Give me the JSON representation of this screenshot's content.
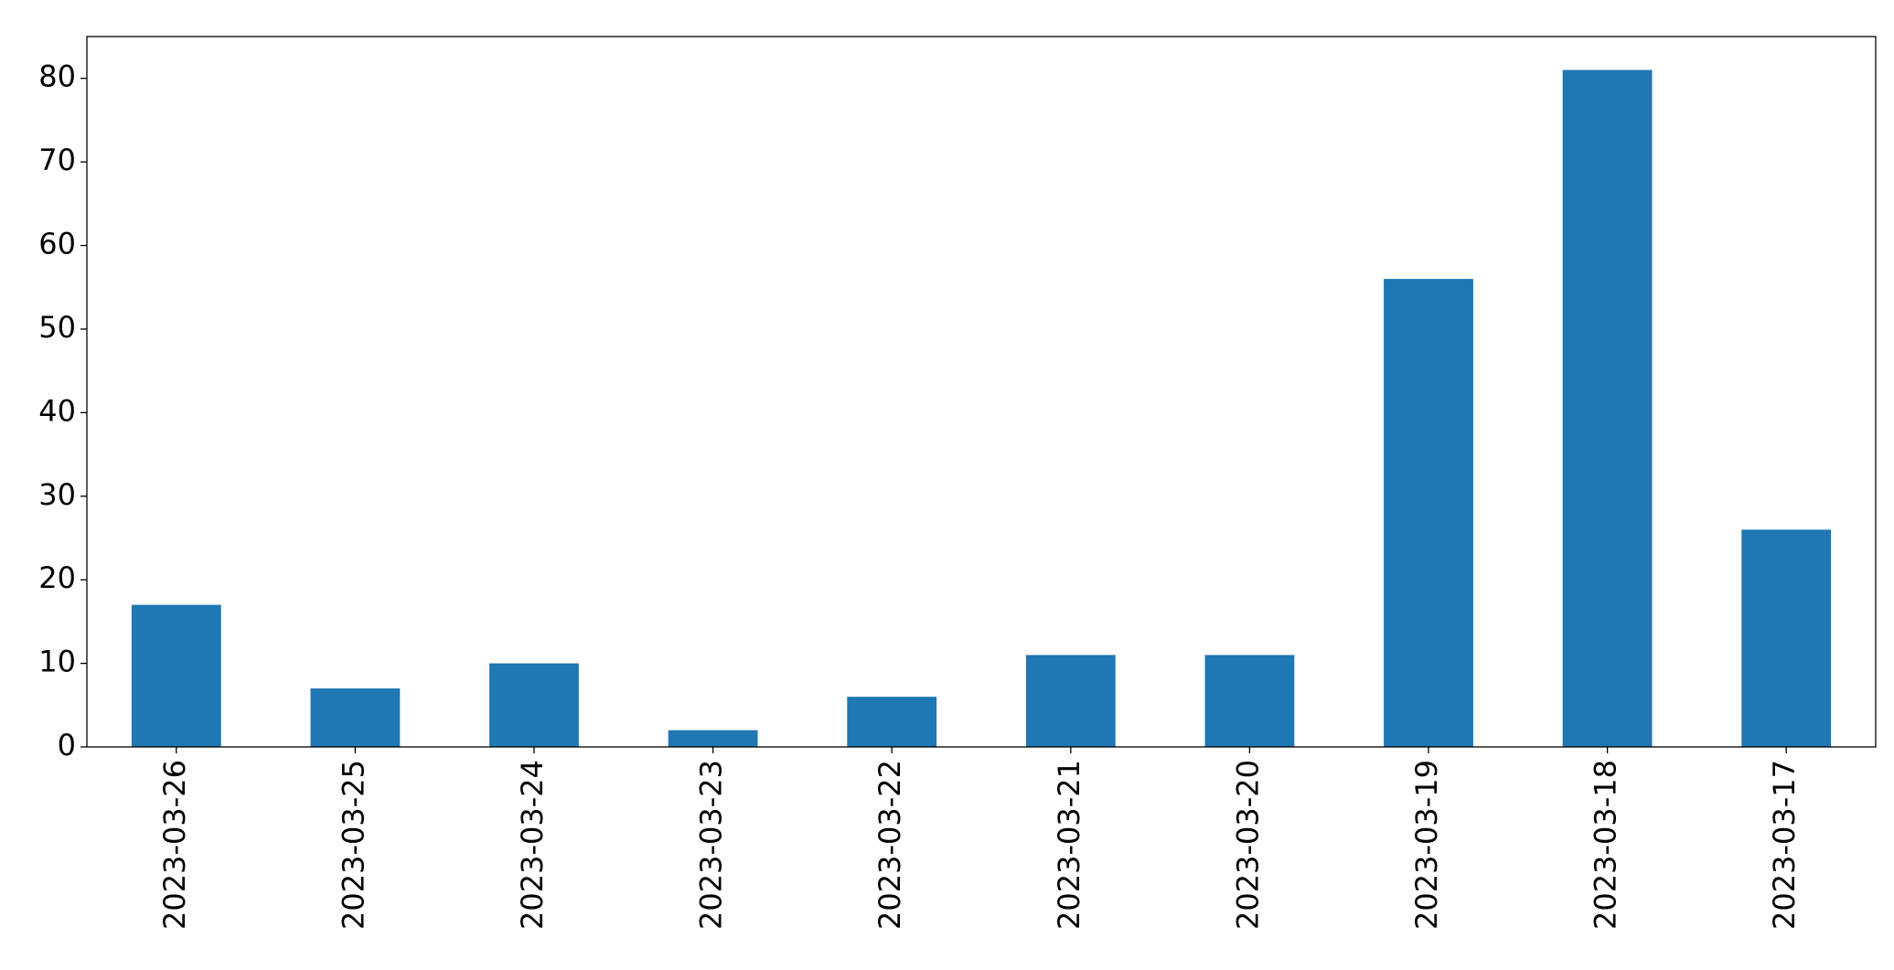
{
  "chart_data": {
    "type": "bar",
    "categories": [
      "2023-03-26",
      "2023-03-25",
      "2023-03-24",
      "2023-03-23",
      "2023-03-22",
      "2023-03-21",
      "2023-03-20",
      "2023-03-19",
      "2023-03-18",
      "2023-03-17"
    ],
    "values": [
      17,
      7,
      10,
      2,
      6,
      11,
      11,
      56,
      81,
      26
    ],
    "color": "#1f77b4",
    "ylim": [
      0,
      85
    ],
    "yticks": [
      0,
      10,
      20,
      30,
      40,
      50,
      60,
      70,
      80
    ],
    "grid": false
  }
}
